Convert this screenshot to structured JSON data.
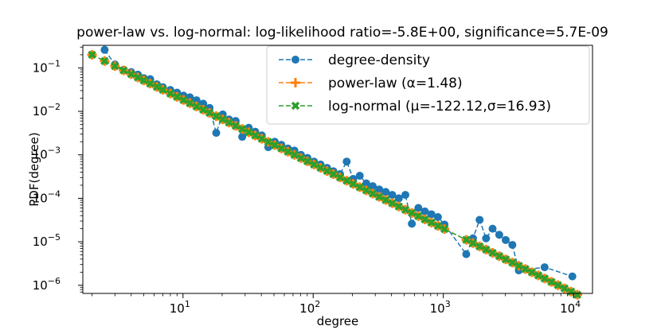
{
  "chart_data": {
    "type": "line",
    "title": "power-law vs. log-normal: log-likelihood ratio=-5.8E+00, significance=5.7E-09",
    "xlabel": "degree",
    "ylabel": "PDF(degree)",
    "xscale": "log",
    "yscale": "log",
    "xlim": [
      1.7,
      14000
    ],
    "ylim": [
      6.5e-07,
      0.33
    ],
    "grid": false,
    "legend_position": "top-right",
    "x_ticks": [
      {
        "value": 10,
        "base": "10",
        "exp": "1"
      },
      {
        "value": 100,
        "base": "10",
        "exp": "2"
      },
      {
        "value": 1000,
        "base": "10",
        "exp": "3"
      },
      {
        "value": 10000,
        "base": "10",
        "exp": "4"
      }
    ],
    "y_ticks": [
      {
        "value": 0.1,
        "base": "10",
        "exp": "−1"
      },
      {
        "value": 0.01,
        "base": "10",
        "exp": "−2"
      },
      {
        "value": 0.001,
        "base": "10",
        "exp": "−3"
      },
      {
        "value": 0.0001,
        "base": "10",
        "exp": "−4"
      },
      {
        "value": 1e-05,
        "base": "10",
        "exp": "−5"
      },
      {
        "value": 1e-06,
        "base": "10",
        "exp": "−6"
      }
    ],
    "series": [
      {
        "name": "degree-density",
        "color": "#1f77b4",
        "marker": "circle",
        "line_style": "dashed",
        "points": [
          [
            2.5,
            0.26
          ],
          [
            3.0,
            0.12
          ],
          [
            3.5,
            0.09
          ],
          [
            4.0,
            0.08
          ],
          [
            4.5,
            0.07
          ],
          [
            5.0,
            0.058
          ],
          [
            5.6,
            0.055
          ],
          [
            6.3,
            0.042
          ],
          [
            7.0,
            0.036
          ],
          [
            8.0,
            0.031
          ],
          [
            9.0,
            0.027
          ],
          [
            10.1,
            0.023
          ],
          [
            11.3,
            0.021
          ],
          [
            12.7,
            0.018
          ],
          [
            14.3,
            0.015
          ],
          [
            16.0,
            0.012
          ],
          [
            18.0,
            0.0032
          ],
          [
            20.2,
            0.0085
          ],
          [
            22.6,
            0.0065
          ],
          [
            25.4,
            0.006
          ],
          [
            28.5,
            0.0026
          ],
          [
            32.0,
            0.0042
          ],
          [
            35.9,
            0.0034
          ],
          [
            40.3,
            0.0028
          ],
          [
            45.2,
            0.0015
          ],
          [
            50.7,
            0.002
          ],
          [
            57.0,
            0.0017
          ],
          [
            64.0,
            0.0014
          ],
          [
            71.8,
            0.00125
          ],
          [
            80.6,
            0.001
          ],
          [
            90.4,
            0.00085
          ],
          [
            101.5,
            0.0007
          ],
          [
            114,
            0.0006
          ],
          [
            128,
            0.0005
          ],
          [
            143,
            0.00042
          ],
          [
            161,
            0.00036
          ],
          [
            181,
            0.0007
          ],
          [
            203,
            0.00028
          ],
          [
            228,
            0.00033
          ],
          [
            256,
            0.00022
          ],
          [
            287,
            0.00019
          ],
          [
            322,
            0.00016
          ],
          [
            361,
            0.00014
          ],
          [
            405,
            0.00012
          ],
          [
            455,
            0.0001
          ],
          [
            511,
            0.00012
          ],
          [
            573,
            2.6e-05
          ],
          [
            643,
            6e-05
          ],
          [
            722,
            5e-05
          ],
          [
            810,
            4.3e-05
          ],
          [
            909,
            3.7e-05
          ],
          [
            1020,
            2.5e-05
          ],
          [
            1500,
            5.2e-06
          ],
          [
            1690,
            1.2e-05
          ],
          [
            1900,
            3.2e-05
          ],
          [
            2130,
            1.2e-05
          ],
          [
            2390,
            2e-05
          ],
          [
            2690,
            1.45e-05
          ],
          [
            3015,
            1.1e-05
          ],
          [
            3390,
            8.5e-06
          ],
          [
            3800,
            2.2e-06
          ],
          [
            6000,
            2.6e-06
          ],
          [
            9800,
            1.6e-06
          ]
        ]
      },
      {
        "name": "power-law",
        "legend_label": "power-law (α=1.48)",
        "color": "#ff7f0e",
        "marker": "plus",
        "line_style": "dashed",
        "alpha": 1.48,
        "x": [
          2.0,
          2.5,
          3.0,
          3.5,
          4.0,
          4.5,
          5.0,
          5.6,
          6.3,
          7.0,
          8.0,
          9.0,
          10.1,
          11.3,
          12.7,
          14.3,
          16.0,
          18.0,
          20.2,
          22.6,
          25.4,
          28.5,
          32.0,
          35.9,
          40.3,
          45.2,
          50.7,
          57.0,
          64.0,
          71.8,
          80.6,
          90.4,
          101.5,
          114,
          128,
          143,
          161,
          181,
          203,
          228,
          256,
          287,
          322,
          361,
          405,
          455,
          511,
          573,
          643,
          722,
          810,
          909,
          1020,
          1500,
          1690,
          1900,
          2130,
          2390,
          2690,
          3015,
          3390,
          3800,
          4270,
          4790,
          5370,
          6000,
          6770,
          7600,
          8530,
          9580,
          10700
        ]
      },
      {
        "name": "log-normal",
        "legend_label": "log-normal (μ=-122.12,σ=16.93)",
        "color": "#2ca02c",
        "marker": "x",
        "line_style": "dashed",
        "mu": -122.12,
        "sigma": 16.93,
        "x": [
          2.0,
          2.5,
          3.0,
          3.5,
          4.0,
          4.5,
          5.0,
          5.6,
          6.3,
          7.0,
          8.0,
          9.0,
          10.1,
          11.3,
          12.7,
          14.3,
          16.0,
          18.0,
          20.2,
          22.6,
          25.4,
          28.5,
          32.0,
          35.9,
          40.3,
          45.2,
          50.7,
          57.0,
          64.0,
          71.8,
          80.6,
          90.4,
          101.5,
          114,
          128,
          143,
          161,
          181,
          203,
          228,
          256,
          287,
          322,
          361,
          405,
          455,
          511,
          573,
          643,
          722,
          810,
          909,
          1020,
          1500,
          1690,
          1900,
          2130,
          2390,
          2690,
          3015,
          3390,
          3800,
          4270,
          4790,
          5370,
          6000,
          6770,
          7600,
          8530,
          9580,
          10700
        ]
      }
    ],
    "fit_line": {
      "x0": 2.0,
      "y0": 0.2,
      "slope": -1.48
    }
  }
}
